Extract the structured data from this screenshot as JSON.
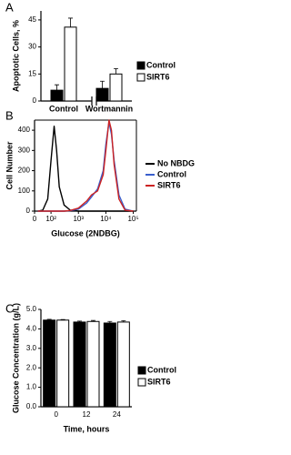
{
  "chart_data": [
    {
      "type": "bar",
      "panel_label": "A",
      "ylabel": "Apoptotic Cells, %",
      "categories": [
        "Control",
        "Wortmannin"
      ],
      "series": [
        {
          "name": "Control",
          "color": "#000000",
          "values": [
            6,
            7
          ],
          "errors": [
            3,
            4
          ]
        },
        {
          "name": "SIRT6",
          "color": "#ffffff",
          "values": [
            41,
            15
          ],
          "errors": [
            5,
            3
          ]
        }
      ],
      "ylim": [
        0,
        50
      ],
      "yticks": [
        0,
        15,
        30,
        45
      ]
    },
    {
      "type": "line",
      "panel_label": "B",
      "ylabel": "Cell Number",
      "xlabel": "Glucose (2NDBG)",
      "xscale": "biexponential",
      "x": [
        20,
        50,
        80,
        100,
        130,
        160,
        200,
        300,
        500,
        1000,
        2000,
        3000,
        5000,
        8000,
        10000,
        13000,
        16000,
        20000,
        30000,
        50000,
        100000
      ],
      "series": [
        {
          "name": "No NBDG",
          "color": "#000000",
          "values": [
            0,
            5,
            60,
            250,
            420,
            300,
            120,
            30,
            5,
            0,
            0,
            0,
            0,
            0,
            0,
            0,
            0,
            0,
            0,
            0,
            0
          ]
        },
        {
          "name": "Control",
          "color": "#3a5fcd",
          "values": [
            0,
            0,
            0,
            0,
            0,
            0,
            0,
            0,
            2,
            10,
            40,
            70,
            110,
            200,
            330,
            440,
            380,
            250,
            80,
            10,
            0
          ]
        },
        {
          "name": "SIRT6",
          "color": "#cc2222",
          "values": [
            0,
            0,
            0,
            0,
            0,
            0,
            0,
            0,
            3,
            15,
            50,
            80,
            100,
            180,
            300,
            450,
            400,
            230,
            60,
            5,
            0
          ]
        }
      ],
      "xlim": [
        0,
        130000
      ],
      "xticks": [
        0,
        {
          "value": 100,
          "label": "10²"
        },
        {
          "value": 1000,
          "label": "10³"
        },
        {
          "value": 10000,
          "label": "10⁴"
        },
        {
          "value": 100000,
          "label": "10⁵"
        }
      ],
      "ylim": [
        0,
        450
      ],
      "yticks": [
        0,
        100,
        200,
        300,
        400
      ]
    },
    {
      "type": "bar",
      "panel_label": "C",
      "ylabel": "Glucose Concentration (g/L)",
      "xlabel": "Time, hours",
      "categories": [
        "0",
        "12",
        "24"
      ],
      "series": [
        {
          "name": "Control",
          "color": "#000000",
          "values": [
            4.45,
            4.35,
            4.3
          ],
          "errors": [
            0.04,
            0.05,
            0.08
          ]
        },
        {
          "name": "SIRT6",
          "color": "#ffffff",
          "values": [
            4.45,
            4.38,
            4.35
          ],
          "errors": [
            0.03,
            0.05,
            0.07
          ]
        }
      ],
      "ylim": [
        0,
        5
      ],
      "yticks": [
        {
          "value": 0,
          "label": "0.0"
        },
        {
          "value": 1,
          "label": "1.0"
        },
        {
          "value": 2,
          "label": "2.0"
        },
        {
          "value": 3,
          "label": "3.0"
        },
        {
          "value": 4,
          "label": "4.0"
        },
        {
          "value": 5,
          "label": "5.0"
        }
      ]
    }
  ]
}
